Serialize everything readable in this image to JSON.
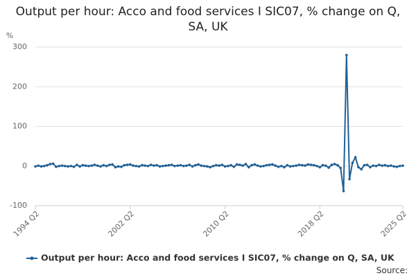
{
  "chart_data": {
    "type": "line",
    "title": "Output per hour: Acco and food services I SIC07, % change on Q, SA, UK",
    "y_label": "%",
    "source": "Source:",
    "categories": [
      "1994 Q2",
      null,
      null,
      null,
      null,
      null,
      null,
      null,
      null,
      null,
      null,
      null,
      null,
      null,
      null,
      null,
      null,
      null,
      null,
      null,
      null,
      null,
      null,
      null,
      null,
      null,
      null,
      null,
      null,
      null,
      null,
      null,
      "2002 Q2",
      null,
      null,
      null,
      null,
      null,
      null,
      null,
      null,
      null,
      null,
      null,
      null,
      null,
      null,
      null,
      null,
      null,
      null,
      null,
      null,
      null,
      null,
      null,
      null,
      null,
      null,
      null,
      null,
      null,
      null,
      null,
      "2010 Q2",
      null,
      null,
      null,
      null,
      null,
      null,
      null,
      null,
      null,
      null,
      null,
      null,
      null,
      null,
      null,
      null,
      null,
      null,
      null,
      null,
      null,
      null,
      null,
      null,
      null,
      null,
      null,
      null,
      null,
      null,
      null,
      "2018 Q2",
      null,
      null,
      null,
      null,
      null,
      null,
      null,
      null,
      null,
      null,
      null,
      null,
      null,
      null,
      null,
      null,
      null,
      null,
      null,
      null,
      null,
      null,
      null,
      null,
      null,
      null,
      null,
      "2025 Q2"
    ],
    "series": [
      {
        "name": "Output per hour: Acco and food services I SIC07, % change on Q, SA, UK",
        "color": "#206095",
        "values": [
          -1,
          1,
          -1,
          0,
          2,
          5,
          6,
          -2,
          0,
          1,
          0,
          -1,
          0,
          -2,
          3,
          -1,
          2,
          1,
          0,
          1,
          3,
          1,
          -1,
          2,
          0,
          3,
          4,
          -3,
          -1,
          -2,
          2,
          3,
          4,
          1,
          0,
          -1,
          2,
          1,
          0,
          3,
          1,
          2,
          -1,
          0,
          1,
          2,
          3,
          0,
          1,
          2,
          0,
          1,
          3,
          -1,
          2,
          4,
          1,
          0,
          -1,
          -3,
          0,
          2,
          1,
          3,
          -1,
          0,
          2,
          -2,
          4,
          3,
          1,
          5,
          -3,
          2,
          4,
          1,
          -1,
          0,
          2,
          3,
          4,
          1,
          -2,
          0,
          -3,
          2,
          -1,
          0,
          1,
          3,
          2,
          1,
          4,
          3,
          2,
          0,
          -3,
          2,
          1,
          -4,
          3,
          5,
          2,
          -5,
          -63,
          280,
          -33,
          8,
          22,
          -3,
          -8,
          2,
          3,
          -3,
          1,
          0,
          3,
          1,
          2,
          0,
          1,
          -1,
          -2,
          0,
          1
        ]
      }
    ],
    "ylim": [
      -100,
      300
    ],
    "yticks": [
      -100,
      0,
      100,
      200,
      300
    ],
    "grid": true
  }
}
